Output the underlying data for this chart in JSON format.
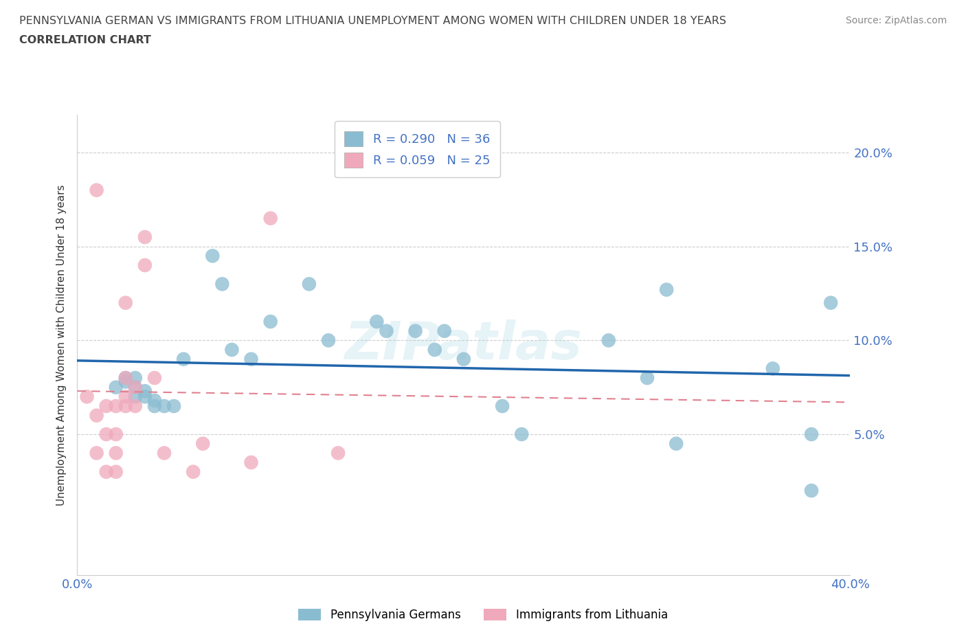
{
  "title_line1": "PENNSYLVANIA GERMAN VS IMMIGRANTS FROM LITHUANIA UNEMPLOYMENT AMONG WOMEN WITH CHILDREN UNDER 18 YEARS",
  "title_line2": "CORRELATION CHART",
  "source": "Source: ZipAtlas.com",
  "ylabel": "Unemployment Among Women with Children Under 18 years",
  "xlim": [
    0,
    0.4
  ],
  "ylim": [
    -0.025,
    0.22
  ],
  "xticks": [
    0.0,
    0.05,
    0.1,
    0.15,
    0.2,
    0.25,
    0.3,
    0.35,
    0.4
  ],
  "yticks": [
    0.05,
    0.1,
    0.15,
    0.2
  ],
  "legend_label1": "Pennsylvania Germans",
  "legend_label2": "Immigrants from Lithuania",
  "r1": 0.29,
  "n1": 36,
  "r2": 0.059,
  "n2": 25,
  "color_blue": "#8abcd1",
  "color_pink": "#f0a8bb",
  "color_blue_line": "#2166ac",
  "color_pink_line": "#e08090",
  "color_axis_label": "#4472c4",
  "watermark": "ZIPatlas",
  "blue_x": [
    0.02,
    0.025,
    0.025,
    0.03,
    0.03,
    0.03,
    0.035,
    0.035,
    0.04,
    0.04,
    0.045,
    0.05,
    0.055,
    0.07,
    0.075,
    0.08,
    0.09,
    0.1,
    0.12,
    0.13,
    0.155,
    0.16,
    0.175,
    0.185,
    0.19,
    0.2,
    0.22,
    0.23,
    0.275,
    0.295,
    0.305,
    0.31,
    0.36,
    0.38,
    0.38,
    0.39
  ],
  "blue_y": [
    0.075,
    0.078,
    0.08,
    0.08,
    0.075,
    0.07,
    0.073,
    0.07,
    0.068,
    0.065,
    0.065,
    0.065,
    0.09,
    0.145,
    0.13,
    0.095,
    0.09,
    0.11,
    0.13,
    0.1,
    0.11,
    0.105,
    0.105,
    0.095,
    0.105,
    0.09,
    0.065,
    0.05,
    0.1,
    0.08,
    0.127,
    0.045,
    0.085,
    0.05,
    0.02,
    0.12
  ],
  "pink_x": [
    0.005,
    0.01,
    0.01,
    0.015,
    0.015,
    0.015,
    0.02,
    0.02,
    0.02,
    0.02,
    0.025,
    0.025,
    0.025,
    0.025,
    0.03,
    0.03,
    0.035,
    0.035,
    0.04,
    0.045,
    0.06,
    0.065,
    0.09,
    0.1,
    0.135
  ],
  "pink_y": [
    0.07,
    0.04,
    0.06,
    0.03,
    0.05,
    0.065,
    0.03,
    0.04,
    0.05,
    0.065,
    0.065,
    0.07,
    0.08,
    0.12,
    0.065,
    0.075,
    0.14,
    0.155,
    0.08,
    0.04,
    0.03,
    0.045,
    0.035,
    0.165,
    0.04
  ],
  "pink_extra_x": [
    0.01
  ],
  "pink_extra_y": [
    0.18
  ]
}
